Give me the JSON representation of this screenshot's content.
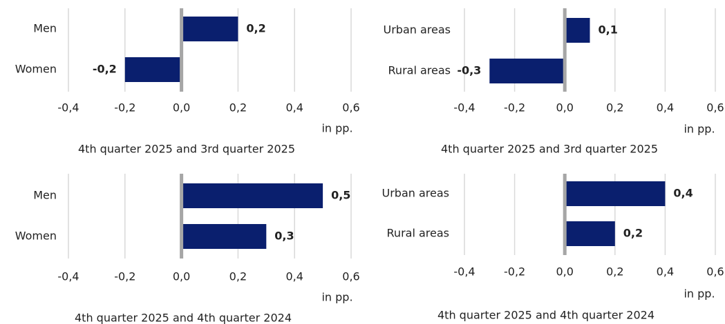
{
  "chart_data": [
    {
      "type": "bar",
      "orientation": "horizontal",
      "title": "4th quarter 2025 and 3rd quarter 2025",
      "categories": [
        "Men",
        "Women"
      ],
      "values": [
        0.2,
        -0.2
      ],
      "value_labels": [
        "0,2",
        "-0,2"
      ],
      "color": "#0a1f6e",
      "xlim": [
        -0.4,
        0.6
      ],
      "xticks": [
        {
          "value": -0.4,
          "label": "-0,4"
        },
        {
          "value": -0.2,
          "label": "-0,2"
        },
        {
          "value": 0,
          "label": "0,0"
        },
        {
          "value": 0.2,
          "label": "0,2"
        },
        {
          "value": 0.4,
          "label": "0,4"
        },
        {
          "value": 0.6,
          "label": "0,6"
        }
      ],
      "xlabel": "in pp.",
      "grid": true
    },
    {
      "type": "bar",
      "orientation": "horizontal",
      "title": "4th quarter 2025 and 3rd quarter 2025",
      "categories": [
        "Urban areas",
        "Rural areas"
      ],
      "values": [
        0.1,
        -0.3
      ],
      "value_labels": [
        "0,1",
        "-0,3"
      ],
      "color": "#0a1f6e",
      "xlim": [
        -0.4,
        0.6
      ],
      "xticks": [
        {
          "value": -0.4,
          "label": "-0,4"
        },
        {
          "value": -0.2,
          "label": "-0,2"
        },
        {
          "value": 0,
          "label": "0,0"
        },
        {
          "value": 0.2,
          "label": "0,2"
        },
        {
          "value": 0.4,
          "label": "0,4"
        },
        {
          "value": 0.6,
          "label": "0,6"
        }
      ],
      "xlabel": "in pp.",
      "grid": true
    },
    {
      "type": "bar",
      "orientation": "horizontal",
      "title": "4th quarter 2025 and 4th quarter 2024",
      "categories": [
        "Men",
        "Women"
      ],
      "values": [
        0.5,
        0.3
      ],
      "value_labels": [
        "0,5",
        "0,3"
      ],
      "color": "#0a1f6e",
      "xlim": [
        -0.4,
        0.6
      ],
      "xticks": [
        {
          "value": -0.4,
          "label": "-0,4"
        },
        {
          "value": -0.2,
          "label": "-0,2"
        },
        {
          "value": 0,
          "label": "0,0"
        },
        {
          "value": 0.2,
          "label": "0,2"
        },
        {
          "value": 0.4,
          "label": "0,4"
        },
        {
          "value": 0.6,
          "label": "0,6"
        }
      ],
      "xlabel": "in pp.",
      "grid": true
    },
    {
      "type": "bar",
      "orientation": "horizontal",
      "title": "4th quarter 2025 and 4th quarter 2024",
      "categories": [
        "Urban areas",
        "Rural areas"
      ],
      "values": [
        0.4,
        0.2
      ],
      "value_labels": [
        "0,4",
        "0,2"
      ],
      "color": "#0a1f6e",
      "xlim": [
        -0.4,
        0.6
      ],
      "xticks": [
        {
          "value": -0.4,
          "label": "-0,4"
        },
        {
          "value": -0.2,
          "label": "-0,2"
        },
        {
          "value": 0,
          "label": "0,0"
        },
        {
          "value": 0.2,
          "label": "0,2"
        },
        {
          "value": 0.4,
          "label": "0,4"
        },
        {
          "value": 0.6,
          "label": "0,6"
        }
      ],
      "xlabel": "in pp.",
      "grid": true
    }
  ]
}
